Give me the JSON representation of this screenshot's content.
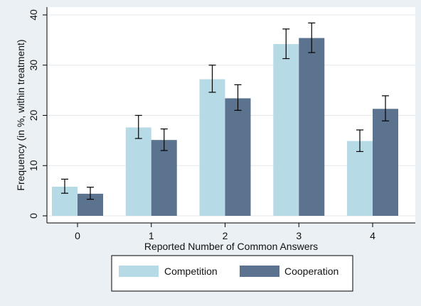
{
  "chart_data": {
    "type": "bar",
    "title": "",
    "xlabel": "Reported Number of Common Answers",
    "ylabel": "Frequency (in %, within treatment)",
    "categories": [
      "0",
      "1",
      "2",
      "3",
      "4"
    ],
    "ylim": [
      0,
      40
    ],
    "yticks": [
      "0",
      "10",
      "20",
      "30",
      "40"
    ],
    "grid": true,
    "legend_position": "bottom",
    "series": [
      {
        "name": "Competition",
        "color": "#b7dbe6",
        "values": [
          5.8,
          17.6,
          27.2,
          34.2,
          14.9
        ],
        "ci_low": [
          4.5,
          15.4,
          24.6,
          31.3,
          12.8
        ],
        "ci_high": [
          7.3,
          20.0,
          30.0,
          37.2,
          17.1
        ]
      },
      {
        "name": "Cooperation",
        "color": "#5c7390",
        "values": [
          4.4,
          15.1,
          23.4,
          35.4,
          21.3
        ],
        "ci_low": [
          3.3,
          13.0,
          21.0,
          32.5,
          18.9
        ],
        "ci_high": [
          5.7,
          17.3,
          26.1,
          38.4,
          23.9
        ]
      }
    ]
  }
}
